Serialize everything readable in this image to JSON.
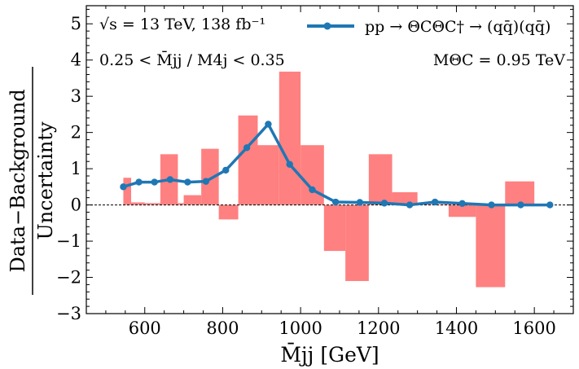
{
  "chart_data": {
    "type": "bar",
    "annotations": {
      "energy": "√s = 13 TeV,   138 fb⁻¹",
      "cut": "0.25 < M̄jj / M4j < 0.35",
      "mass": "MΘC = 0.95 TeV"
    },
    "xlabel": "M̄jj [GeV]",
    "ylabel_numerator": "Data−Background",
    "ylabel_denominator": "Uncertainty",
    "xlim": [
      450,
      1700
    ],
    "ylim": [
      -3,
      5.5
    ],
    "x_ticks": [
      600,
      800,
      1000,
      1200,
      1400,
      1600
    ],
    "y_ticks": [
      -3,
      -2,
      -1,
      0,
      1,
      2,
      3,
      4,
      5
    ],
    "grid": false,
    "legend_position": "top-right",
    "series": [
      {
        "kind": "histogram",
        "color": "#ff8080",
        "bins": [
          {
            "x0": 545,
            "x1": 565,
            "value": 0.75
          },
          {
            "x0": 565,
            "x1": 600,
            "value": 0.07
          },
          {
            "x0": 600,
            "x1": 640,
            "value": 0.05
          },
          {
            "x0": 640,
            "x1": 685,
            "value": 1.4
          },
          {
            "x0": 685,
            "x1": 700,
            "value": 0.05
          },
          {
            "x0": 700,
            "x1": 745,
            "value": 0.27
          },
          {
            "x0": 745,
            "x1": 790,
            "value": 1.55
          },
          {
            "x0": 790,
            "x1": 840,
            "value": -0.4
          },
          {
            "x0": 840,
            "x1": 890,
            "value": 2.47
          },
          {
            "x0": 890,
            "x1": 945,
            "value": 1.65
          },
          {
            "x0": 945,
            "x1": 1000,
            "value": 3.68
          },
          {
            "x0": 1000,
            "x1": 1060,
            "value": 1.65
          },
          {
            "x0": 1060,
            "x1": 1115,
            "value": -1.27
          },
          {
            "x0": 1115,
            "x1": 1175,
            "value": -2.1
          },
          {
            "x0": 1175,
            "x1": 1235,
            "value": 1.4
          },
          {
            "x0": 1235,
            "x1": 1300,
            "value": 0.35
          },
          {
            "x0": 1300,
            "x1": 1380,
            "value": 0.02
          },
          {
            "x0": 1380,
            "x1": 1450,
            "value": -0.33
          },
          {
            "x0": 1450,
            "x1": 1525,
            "value": -2.27
          },
          {
            "x0": 1525,
            "x1": 1600,
            "value": 0.65
          }
        ]
      },
      {
        "kind": "line",
        "name": "pp → ΘCΘC† → (qq̄)(qq̄)",
        "color": "#1f77b4",
        "x": [
          545,
          585,
          625,
          665,
          710,
          757,
          808,
          862,
          917,
          972,
          1030,
          1090,
          1152,
          1215,
          1280,
          1345,
          1415,
          1490,
          1565,
          1640
        ],
        "y": [
          0.5,
          0.63,
          0.63,
          0.7,
          0.63,
          0.65,
          0.96,
          1.58,
          2.23,
          1.12,
          0.42,
          0.08,
          0.07,
          0.05,
          0.0,
          0.08,
          0.04,
          0.0,
          0.0,
          0.0
        ]
      }
    ]
  }
}
